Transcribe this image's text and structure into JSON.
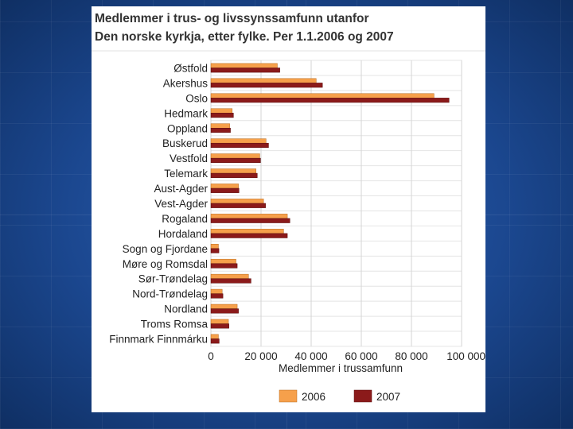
{
  "slide": {
    "background_color": "#1b478f"
  },
  "chart_data": {
    "type": "bar",
    "orientation": "horizontal",
    "title": "Medlemmer i trus- og livssynssamfunn utanfor",
    "subtitle": "Den norske kyrkja, etter fylke. Per 1.1.2006 og 2007",
    "xlabel": "Medlemmer i trussamfunn",
    "ylabel": "",
    "xlim": [
      0,
      100000
    ],
    "x_ticks": [
      0,
      20000,
      40000,
      60000,
      80000,
      100000
    ],
    "x_tick_labels": [
      "0",
      "20 000",
      "40 000",
      "60 000",
      "80 000",
      "100 000"
    ],
    "grid": true,
    "legend_position": "bottom",
    "categories": [
      "Østfold",
      "Akershus",
      "Oslo",
      "Hedmark",
      "Oppland",
      "Buskerud",
      "Vestfold",
      "Telemark",
      "Aust-Agder",
      "Vest-Agder",
      "Rogaland",
      "Hordaland",
      "Sogn og Fjordane",
      "Møre og Romsdal",
      "Sør-Trøndelag",
      "Nord-Trøndelag",
      "Nordland",
      "Troms Romsa",
      "Finnmark Finnmárku"
    ],
    "series": [
      {
        "name": "2006",
        "color": "#f6a04b",
        "values": [
          26500,
          42000,
          89000,
          8500,
          7500,
          22000,
          19500,
          18000,
          11000,
          21000,
          30500,
          29000,
          3000,
          10000,
          15000,
          4500,
          10500,
          7000,
          3000
        ]
      },
      {
        "name": "2007",
        "color": "#8b1a1a",
        "values": [
          27500,
          44500,
          95000,
          9000,
          7800,
          23000,
          19800,
          18500,
          11200,
          21800,
          31500,
          30500,
          3200,
          10500,
          16000,
          4800,
          11000,
          7200,
          3300
        ]
      }
    ]
  }
}
